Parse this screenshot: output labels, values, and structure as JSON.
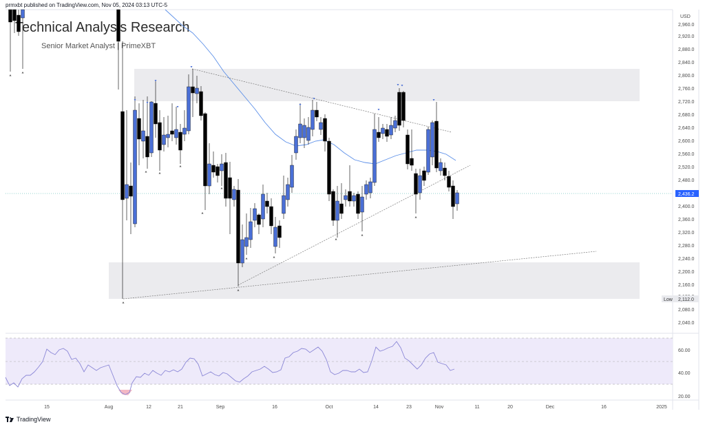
{
  "header": {
    "published_text": "prmxbt published on TradingView.com, Nov 05, 2024 03:13 UTC-5"
  },
  "watermark": {
    "title": "Technical Analysis Research",
    "subtitle": "Senior Market Analyst | PrimeXBT"
  },
  "price_axis": {
    "currency": "USD",
    "ticks": [
      "2,960.0",
      "2,920.0",
      "2,880.0",
      "2,840.0",
      "2,800.0",
      "2,760.0",
      "2,720.0",
      "2,680.0",
      "2,640.0",
      "2,600.0",
      "2,560.0",
      "2,520.0",
      "2,480.0",
      "2,400.0",
      "2,360.0",
      "2,320.0",
      "2,280.0",
      "2,240.0",
      "2,200.0",
      "2,160.0",
      "2,120.0",
      "2,080.0",
      "2,040.0"
    ],
    "last_price": "2,436.2",
    "low_label": "Low",
    "low_value": "2,112.0"
  },
  "rsi_axis": {
    "ticks": [
      "60.00",
      "40.00",
      "20.00"
    ]
  },
  "time_axis": {
    "labels": [
      "15",
      "Aug",
      "12",
      "21",
      "Sep",
      "16",
      "Oct",
      "14",
      "23",
      "Nov",
      "11",
      "20",
      "Dec",
      "16",
      "2025"
    ]
  },
  "footer": {
    "brand": "TradingView"
  },
  "colors": {
    "bull": "#4a6fd6",
    "bear": "#000000",
    "ma": "#5b8fe8",
    "zone": "#ebebee",
    "rsi": "#8a86d6",
    "rsi_band": "#eeeafa",
    "last_price": "#2962ff"
  },
  "chart_data": {
    "type": "candlestick",
    "price_range": [
      2020,
      2985
    ],
    "zones": [
      [
        2720,
        2820
      ],
      [
        2113,
        2222
      ]
    ],
    "last_price": 2436.2,
    "period_low": 2112.0,
    "rsi_levels": [
      70,
      50,
      30
    ]
  }
}
